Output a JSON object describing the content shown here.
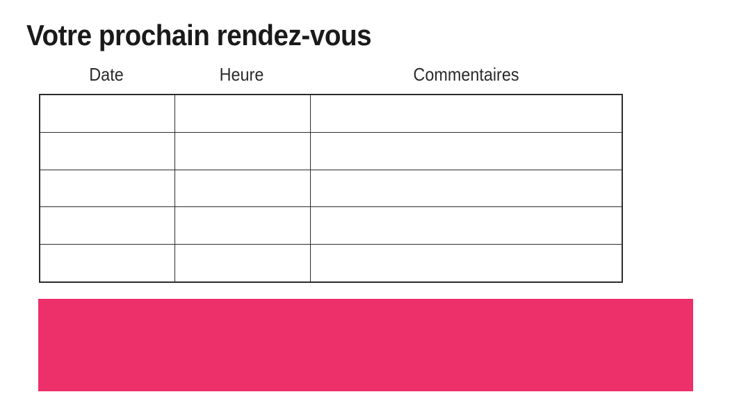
{
  "page": {
    "title": "Votre prochain rendez-vous",
    "background": "#ffffff"
  },
  "table": {
    "headers": [
      "Date",
      "Heure",
      "Commentaires"
    ],
    "rows": [
      [
        "",
        "",
        ""
      ],
      [
        "",
        "",
        ""
      ],
      [
        "",
        "",
        ""
      ],
      [
        "",
        "",
        ""
      ],
      [
        "",
        "",
        ""
      ]
    ]
  },
  "banner": {
    "text": ""
  },
  "colors": {
    "title_text": "#1a1a1a",
    "header_text": "#2b2b2b",
    "table_border": "#2b2b2b",
    "accent_pink": "#ed2f6a"
  }
}
